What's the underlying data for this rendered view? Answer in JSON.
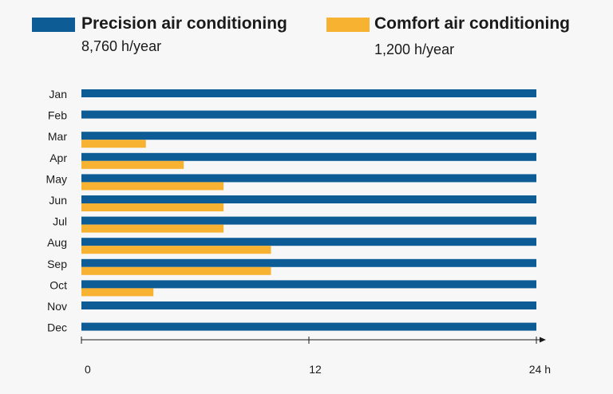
{
  "legend": [
    {
      "title": "Precision air conditioning",
      "subtitle": "8,760 h/year",
      "color": "#0d5c96"
    },
    {
      "title": "Comfort air conditioning",
      "subtitle": "1,200 h/year",
      "color": "#f7b231"
    }
  ],
  "chart_data": {
    "type": "bar",
    "orientation": "horizontal",
    "categories": [
      "Jan",
      "Feb",
      "Mar",
      "Apr",
      "May",
      "Jun",
      "Jul",
      "Aug",
      "Sep",
      "Oct",
      "Nov",
      "Dec"
    ],
    "series": [
      {
        "name": "Precision air conditioning",
        "color": "#0d5c96",
        "values": [
          24,
          24,
          24,
          24,
          24,
          24,
          24,
          24,
          24,
          24,
          24,
          24
        ]
      },
      {
        "name": "Comfort air conditioning",
        "color": "#f7b231",
        "values": [
          0,
          0,
          3.4,
          5.4,
          7.5,
          7.5,
          7.5,
          10,
          10,
          3.8,
          0,
          0
        ]
      }
    ],
    "xlim": [
      0,
      24
    ],
    "ticks": [
      {
        "value": 0,
        "label": "0"
      },
      {
        "value": 12,
        "label": "12"
      },
      {
        "value": 24,
        "label": "24 h"
      }
    ],
    "grid": false
  }
}
